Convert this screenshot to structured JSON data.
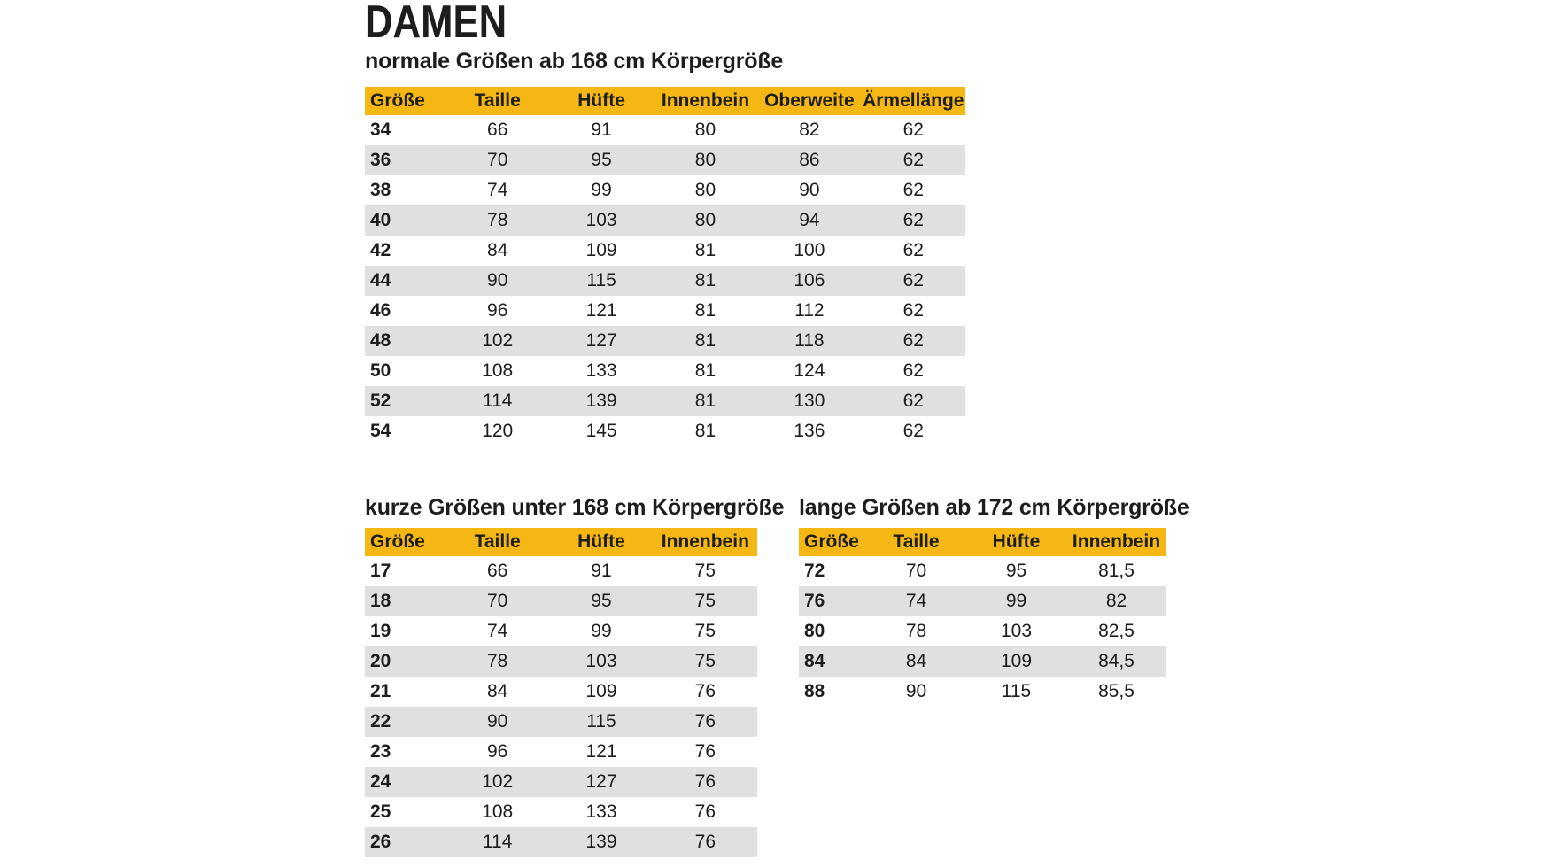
{
  "page": {
    "title": "DAMEN"
  },
  "colors": {
    "header_bg": "#f5b714",
    "row_alt_bg": "#e0e0de",
    "text": "#1d1d1b",
    "background": "#ffffff"
  },
  "tables": [
    {
      "id": "normal-sizes",
      "subtitle": "normale Größen ab 168 cm Körpergröße",
      "columns": [
        "Größe",
        "Taille",
        "Hüfte",
        "Innenbein",
        "Oberweite",
        "Ärmellänge"
      ],
      "rows": [
        [
          34,
          66,
          91,
          80,
          82,
          62
        ],
        [
          36,
          70,
          95,
          80,
          86,
          62
        ],
        [
          38,
          74,
          99,
          80,
          90,
          62
        ],
        [
          40,
          78,
          103,
          80,
          94,
          62
        ],
        [
          42,
          84,
          109,
          81,
          100,
          62
        ],
        [
          44,
          90,
          115,
          81,
          106,
          62
        ],
        [
          46,
          96,
          121,
          81,
          112,
          62
        ],
        [
          48,
          102,
          127,
          81,
          118,
          62
        ],
        [
          50,
          108,
          133,
          81,
          124,
          62
        ],
        [
          52,
          114,
          139,
          81,
          130,
          62
        ],
        [
          54,
          120,
          145,
          81,
          136,
          62
        ]
      ]
    },
    {
      "id": "short-sizes",
      "subtitle": "kurze Größen unter 168 cm Körpergröße",
      "columns": [
        "Größe",
        "Taille",
        "Hüfte",
        "Innenbein"
      ],
      "rows": [
        [
          17,
          66,
          91,
          75
        ],
        [
          18,
          70,
          95,
          75
        ],
        [
          19,
          74,
          99,
          75
        ],
        [
          20,
          78,
          103,
          75
        ],
        [
          21,
          84,
          109,
          76
        ],
        [
          22,
          90,
          115,
          76
        ],
        [
          23,
          96,
          121,
          76
        ],
        [
          24,
          102,
          127,
          76
        ],
        [
          25,
          108,
          133,
          76
        ],
        [
          26,
          114,
          139,
          76
        ]
      ]
    },
    {
      "id": "long-sizes",
      "subtitle": "lange Größen ab 172 cm Körpergröße",
      "columns": [
        "Größe",
        "Taille",
        "Hüfte",
        "Innenbein"
      ],
      "rows": [
        [
          72,
          70,
          95,
          "81,5"
        ],
        [
          76,
          74,
          99,
          "82"
        ],
        [
          80,
          78,
          103,
          "82,5"
        ],
        [
          84,
          84,
          109,
          "84,5"
        ],
        [
          88,
          90,
          115,
          "85,5"
        ]
      ]
    }
  ]
}
